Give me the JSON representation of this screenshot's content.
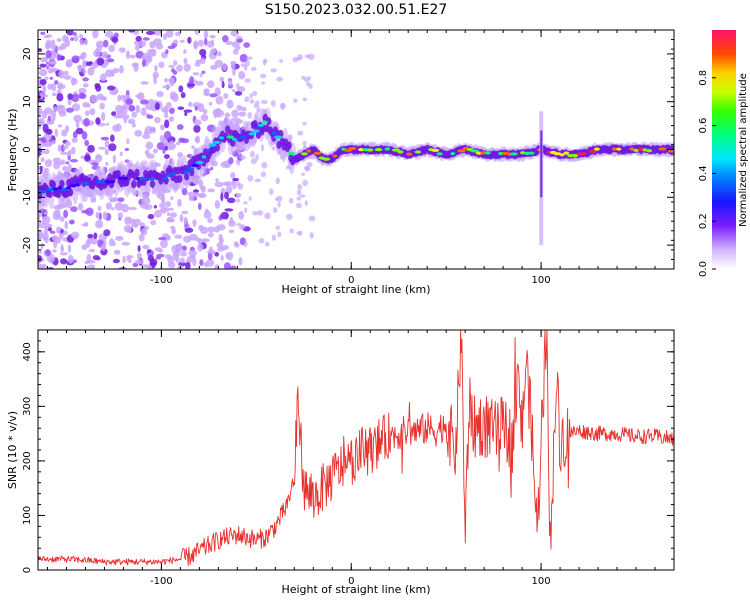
{
  "title": "S150.2023.032.00.51.E27",
  "colors": {
    "snr_line": "#e8302c",
    "axis": "#000000",
    "background": "#ffffff",
    "colormap": [
      "#e8e0ff",
      "#c9a6ff",
      "#9a52ff",
      "#6e1be0",
      "#3300ff",
      "#0066ff",
      "#00d0ff",
      "#00ff7a",
      "#80ff00",
      "#ffee00",
      "#ff6a00",
      "#ff1a5c"
    ]
  },
  "chart_data": [
    {
      "type": "heatmap",
      "title": "S150.2023.032.00.51.E27",
      "xlabel": "Height of straight line (km)",
      "ylabel": "Frequency (Hz)",
      "xlim": [
        -165,
        170
      ],
      "ylim": [
        -25,
        25
      ],
      "xticks": [
        "-100",
        "0",
        "100"
      ],
      "yticks": [
        "-20",
        "-10",
        "0",
        "10",
        "20"
      ],
      "ridge": {
        "x": [
          -165,
          -150,
          -140,
          -130,
          -120,
          -110,
          -100,
          -90,
          -80,
          -75,
          -70,
          -65,
          -60,
          -55,
          -50,
          -45,
          -40,
          -35,
          -30,
          -25,
          -20,
          -15,
          -10,
          -5,
          0,
          10,
          20,
          30,
          40,
          50,
          60,
          70,
          80,
          90,
          100,
          110,
          120,
          130,
          140,
          150,
          160,
          170
        ],
        "y": [
          -9,
          -8,
          -7,
          -7,
          -6,
          -6,
          -6,
          -5,
          -3,
          0,
          2,
          3,
          2,
          3,
          4,
          6,
          3,
          1,
          -2,
          -1,
          0,
          -2,
          -2,
          0,
          0,
          0,
          0,
          -1,
          0,
          -1,
          0,
          -1,
          -1,
          -1,
          0,
          -1,
          -1,
          0,
          0,
          0,
          0,
          0
        ]
      },
      "colorbar": {
        "label": "Normalized spectral amplitude",
        "range": [
          0,
          1
        ],
        "ticks": [
          "0.0",
          "0.2",
          "0.4",
          "0.6",
          "0.8"
        ]
      }
    },
    {
      "type": "line",
      "title": "",
      "xlabel": "Height of straight line (km)",
      "ylabel": "SNR (10 * v/v)",
      "xlim": [
        -165,
        170
      ],
      "ylim": [
        0,
        440
      ],
      "xticks": [
        "-100",
        "0",
        "100"
      ],
      "yticks": [
        "0",
        "100",
        "200",
        "300",
        "400"
      ],
      "series": [
        {
          "x": [
            -165,
            -150,
            -140,
            -130,
            -120,
            -110,
            -100,
            -90,
            -85,
            -80,
            -75,
            -70,
            -65,
            -60,
            -55,
            -50,
            -45,
            -40,
            -35,
            -32,
            -30,
            -28,
            -25,
            -20,
            -15,
            -10,
            -5,
            0,
            5,
            10,
            15,
            20,
            25,
            30,
            35,
            40,
            45,
            50,
            55,
            58,
            60,
            62,
            65,
            70,
            75,
            80,
            85,
            88,
            90,
            92,
            95,
            98,
            100,
            103,
            105,
            107,
            108,
            110,
            115,
            120,
            130,
            140,
            150,
            160,
            170
          ],
          "y": [
            20,
            20,
            18,
            15,
            15,
            15,
            15,
            20,
            25,
            35,
            45,
            55,
            60,
            65,
            60,
            55,
            60,
            80,
            110,
            140,
            170,
            320,
            150,
            130,
            150,
            170,
            190,
            200,
            215,
            220,
            235,
            245,
            250,
            255,
            255,
            260,
            255,
            270,
            220,
            440,
            60,
            300,
            260,
            270,
            250,
            260,
            240,
            350,
            250,
            390,
            260,
            60,
            250,
            440,
            10,
            280,
            350,
            240,
            250,
            255,
            250,
            250,
            245,
            245,
            240
          ]
        }
      ]
    }
  ]
}
